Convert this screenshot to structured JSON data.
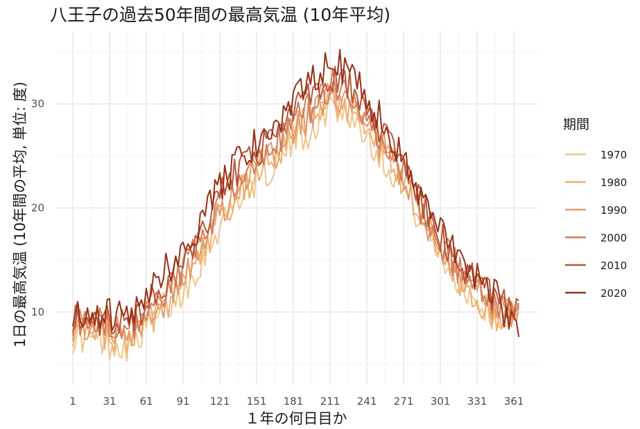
{
  "chart_data": {
    "type": "line",
    "title": "八王子の過去50年間の最高気温 (10年平均)",
    "xlabel": "１年の何日目か",
    "ylabel": "1日の最高気温 (10年間の平均, 単位: 度)",
    "xlim": [
      1,
      366
    ],
    "ylim": [
      3,
      37
    ],
    "x_ticks": [
      1,
      31,
      61,
      91,
      121,
      151,
      181,
      211,
      241,
      271,
      301,
      331,
      361
    ],
    "y_ticks": [
      10,
      20,
      30
    ],
    "grid": true,
    "legend_title": "期間",
    "legend_position": "right",
    "series_x": [
      1,
      15,
      31,
      46,
      61,
      76,
      91,
      106,
      121,
      136,
      151,
      166,
      181,
      196,
      211,
      226,
      241,
      256,
      271,
      286,
      301,
      316,
      331,
      346,
      366
    ],
    "series": [
      {
        "name": "1970",
        "color": "#f2c48a",
        "values": [
          7.6,
          7.5,
          7.0,
          6.8,
          8.5,
          10.0,
          12.0,
          15.0,
          18.5,
          21.0,
          22.8,
          24.0,
          26.5,
          27.5,
          30.0,
          29.0,
          27.0,
          24.5,
          22.0,
          18.5,
          15.5,
          13.0,
          11.0,
          9.5,
          9.0
        ]
      },
      {
        "name": "1980",
        "color": "#eeae6e",
        "values": [
          8.2,
          8.0,
          7.5,
          7.2,
          9.0,
          10.5,
          12.8,
          15.8,
          19.0,
          21.5,
          23.2,
          24.5,
          27.0,
          28.2,
          30.5,
          29.5,
          27.5,
          25.0,
          22.3,
          18.8,
          15.8,
          13.3,
          11.3,
          9.8,
          9.5
        ]
      },
      {
        "name": "1990",
        "color": "#e39a68",
        "values": [
          8.8,
          8.6,
          8.2,
          7.8,
          9.5,
          11.0,
          13.3,
          16.3,
          19.6,
          22.0,
          23.8,
          25.0,
          27.6,
          28.8,
          31.0,
          30.2,
          28.2,
          25.6,
          22.8,
          19.3,
          16.3,
          13.8,
          11.8,
          10.3,
          10.0
        ]
      },
      {
        "name": "2000",
        "color": "#d17c5a",
        "values": [
          9.3,
          9.1,
          8.7,
          8.4,
          10.0,
          11.8,
          14.0,
          17.0,
          20.3,
          22.8,
          24.5,
          25.8,
          28.5,
          29.8,
          31.8,
          31.2,
          29.0,
          26.3,
          23.3,
          19.8,
          16.8,
          14.2,
          12.3,
          10.7,
          10.3
        ]
      },
      {
        "name": "2010",
        "color": "#b9553b",
        "values": [
          9.7,
          9.5,
          9.2,
          9.0,
          10.6,
          12.5,
          14.8,
          17.8,
          21.2,
          23.6,
          25.3,
          26.8,
          29.5,
          30.8,
          32.5,
          32.0,
          29.8,
          27.0,
          24.0,
          20.3,
          17.3,
          14.7,
          12.7,
          11.0,
          10.6
        ]
      },
      {
        "name": "2020",
        "color": "#982f16",
        "values": [
          10.2,
          10.0,
          9.8,
          9.6,
          11.5,
          14.0,
          15.6,
          18.8,
          22.0,
          24.5,
          26.2,
          27.8,
          30.5,
          32.0,
          34.5,
          33.0,
          30.6,
          27.8,
          24.8,
          21.0,
          18.0,
          15.3,
          13.3,
          11.6,
          7.0
        ]
      }
    ]
  }
}
